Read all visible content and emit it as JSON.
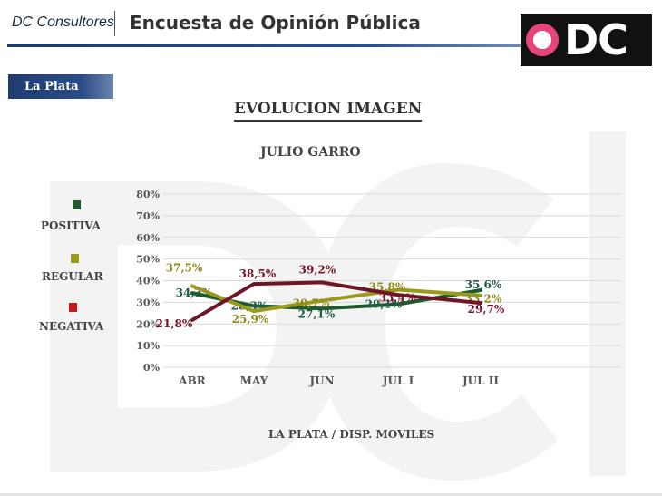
{
  "header": {
    "brand": "DC Consultores",
    "survey_title": "Encuesta de Opinión Pública",
    "logo_text": "DC"
  },
  "location_tab": "La Plata",
  "footer_caption": "LA PLATA / DISP. MOVILES",
  "legend": [
    {
      "label": "POSITIVA",
      "color": "#1e5a2c"
    },
    {
      "label": "REGULAR",
      "color": "#9a9a1e"
    },
    {
      "label": "NEGATIVA",
      "color": "#c8171b"
    }
  ],
  "chart_data": {
    "type": "line",
    "title": "EVOLUCION IMAGEN",
    "subtitle": "JULIO GARRO",
    "categories": [
      "ABR",
      "MAY",
      "JUN",
      "JUL I",
      "JUL II"
    ],
    "yticks": [
      "0%",
      "10%",
      "20%",
      "30%",
      "40%",
      "50%",
      "60%",
      "70%",
      "80%"
    ],
    "ylim": [
      0,
      80
    ],
    "grid": true,
    "legend_position": "left",
    "series": [
      {
        "name": "POSITIVA",
        "color": "#1e5a2c",
        "label_color": "#1f5a4a",
        "values": [
          34.3,
          28.3,
          27.1,
          29.1,
          35.6
        ],
        "labels": [
          "34,3%",
          "28,3%",
          "27,1%",
          "29,1%",
          "35,6%"
        ]
      },
      {
        "name": "REGULAR",
        "color": "#9a9a1e",
        "label_color": "#8e8a1a",
        "values": [
          37.5,
          25.9,
          30.7,
          35.8,
          33.2
        ],
        "labels": [
          "37,5%",
          "25,9%",
          "30,7%",
          "35,8%",
          "33,2%"
        ]
      },
      {
        "name": "NEGATIVA",
        "color": "#6e1526",
        "label_color": "#7a1428",
        "values": [
          21.8,
          38.5,
          39.2,
          33.4,
          29.7
        ],
        "labels": [
          "21,8%",
          "38,5%",
          "39,2%",
          "33,4%",
          "29,7%"
        ]
      }
    ]
  }
}
